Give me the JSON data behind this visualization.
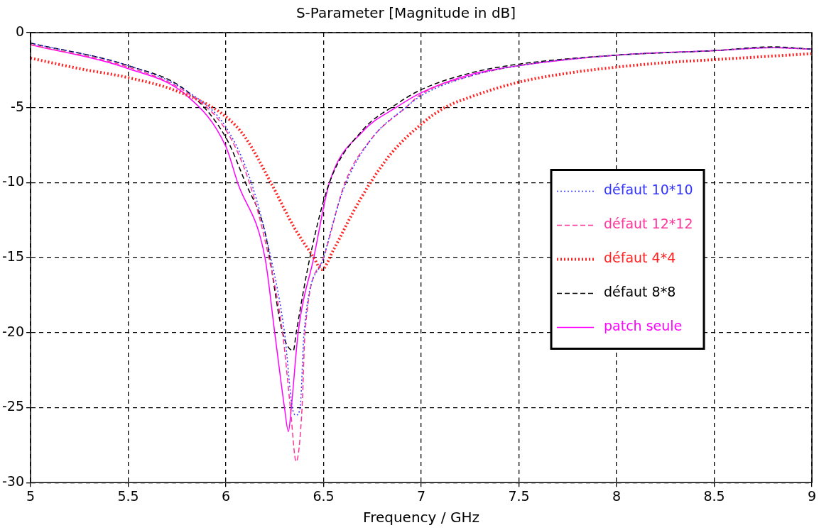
{
  "chart_data": {
    "type": "line",
    "title": "S-Parameter [Magnitude in dB]",
    "xlabel": "Frequency / GHz",
    "xlim": [
      5,
      9
    ],
    "xticks": [
      5,
      5.5,
      6,
      6.5,
      7,
      7.5,
      8,
      8.5,
      9
    ],
    "ylim": [
      -30,
      0
    ],
    "yticks": [
      -30,
      -25,
      -20,
      -15,
      -10,
      -5,
      0
    ],
    "grid": true,
    "legend": "right",
    "marker": "none",
    "series": [
      {
        "name": "défaut 10*10",
        "color": "#3333ff",
        "line_style": "dotted",
        "x": [
          5,
          5.5,
          5.8,
          6,
          6.13,
          6.23,
          6.3,
          6.34,
          6.36,
          6.38,
          6.4,
          6.5,
          6.6,
          6.75,
          6.92,
          7,
          7.25,
          7.5,
          8,
          8.5,
          8.8,
          9
        ],
        "values": [
          -0.7,
          -2.2,
          -3.9,
          -6.3,
          -10,
          -15,
          -20,
          -25,
          -25.5,
          -25,
          -20,
          -15,
          -10.5,
          -7,
          -5,
          -4.2,
          -2.9,
          -2.2,
          -1.5,
          -1.2,
          -1.0,
          -1.1
        ]
      },
      {
        "name": "défaut 12*12",
        "color": "#ff3399",
        "line_style": "dashed",
        "x": [
          5,
          5.5,
          5.8,
          6,
          6.12,
          6.22,
          6.29,
          6.33,
          6.36,
          6.39,
          6.405,
          6.5,
          6.61,
          6.75,
          6.92,
          7,
          7.25,
          7.5,
          8,
          8.5,
          8.8,
          9
        ],
        "values": [
          -0.8,
          -2.3,
          -4.0,
          -6.5,
          -10,
          -15,
          -20,
          -25,
          -28.6,
          -25,
          -20,
          -15,
          -10,
          -7,
          -5,
          -4.1,
          -2.9,
          -2.2,
          -1.5,
          -1.2,
          -1.0,
          -1.1
        ]
      },
      {
        "name": "défaut 4*4",
        "color": "#ff2222",
        "line_style": "dotted",
        "x": [
          5,
          5.25,
          5.5,
          5.75,
          6,
          6.1,
          6.23,
          6.35,
          6.45,
          6.49,
          6.55,
          6.65,
          6.74,
          6.85,
          7,
          7.12,
          7.25,
          7.5,
          7.75,
          8,
          8.25,
          8.5,
          8.75,
          9
        ],
        "values": [
          -1.7,
          -2.4,
          -3.0,
          -3.9,
          -5.6,
          -7,
          -10,
          -13,
          -15,
          -15.8,
          -14.5,
          -12,
          -10,
          -8,
          -6.1,
          -5,
          -4.3,
          -3.3,
          -2.7,
          -2.3,
          -2.0,
          -1.8,
          -1.6,
          -1.4
        ]
      },
      {
        "name": "défaut 8*8",
        "color": "#000000",
        "line_style": "dashed",
        "x": [
          5,
          5.5,
          5.8,
          6,
          6.1,
          6.2,
          6.29,
          6.345,
          6.36,
          6.43,
          6.53,
          6.7,
          6.87,
          7,
          7.25,
          7.5,
          8,
          8.5,
          8.8,
          9
        ],
        "values": [
          -0.7,
          -2.2,
          -3.9,
          -7.0,
          -10,
          -13.3,
          -20,
          -21.2,
          -20,
          -15,
          -10,
          -6.5,
          -4.8,
          -3.8,
          -2.7,
          -2.1,
          -1.5,
          -1.2,
          -0.95,
          -1.1
        ]
      },
      {
        "name": "patch seule",
        "color": "#ff00ff",
        "line_style": "solid",
        "x": [
          5,
          5.5,
          5.8,
          6,
          6.06,
          6.2,
          6.25,
          6.3,
          6.32,
          6.335,
          6.37,
          6.45,
          6.53,
          6.7,
          6.87,
          7,
          7.25,
          7.5,
          8,
          8.5,
          8.8,
          9
        ],
        "values": [
          -0.8,
          -2.4,
          -4.2,
          -7.6,
          -10,
          -15,
          -20,
          -25,
          -26.6,
          -25,
          -20,
          -15,
          -10,
          -6.6,
          -5,
          -4.0,
          -2.8,
          -2.2,
          -1.5,
          -1.2,
          -1.0,
          -1.1
        ]
      }
    ]
  }
}
